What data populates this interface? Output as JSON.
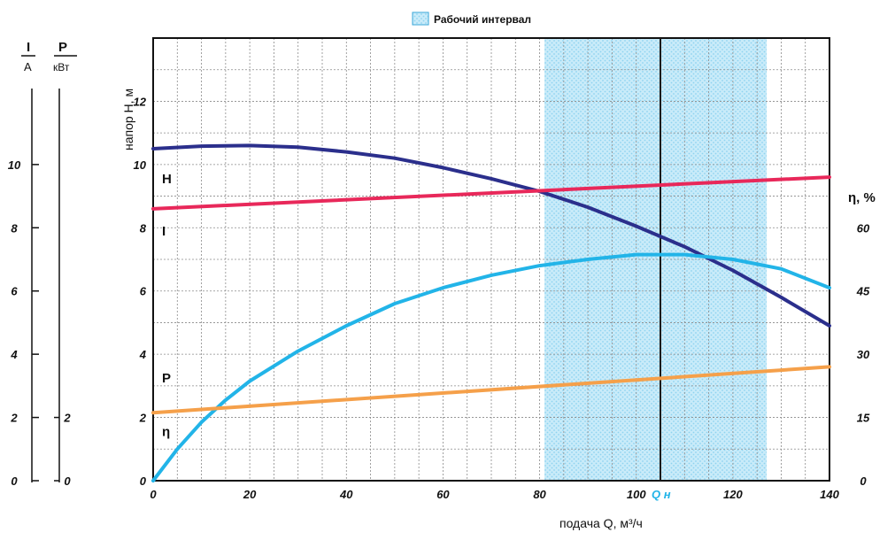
{
  "chart_data": {
    "type": "line",
    "legend": {
      "label": "Рабочий интервал",
      "placement": "top-center",
      "color": "#a8dcf2"
    },
    "x_axis": {
      "label": "подача Q, м³/ч",
      "range": [
        0,
        140
      ],
      "ticks": [
        "0",
        "20",
        "40",
        "60",
        "80",
        "100",
        "120",
        "140"
      ],
      "nominal_label": "Q н",
      "nominal_value": 105
    },
    "y_axis_left": {
      "label": "напор H, м",
      "range": [
        0,
        14
      ],
      "ticks": [
        "0",
        "2",
        "4",
        "6",
        "8",
        "10",
        "12"
      ]
    },
    "y_axis_right": {
      "label": "η, %",
      "range": [
        0,
        105
      ],
      "ticks": [
        "0",
        "15",
        "30",
        "45",
        "60"
      ]
    },
    "aux_axis_current": {
      "label_top": "I",
      "label_unit": "A",
      "ticks": [
        "0",
        "2",
        "4",
        "6",
        "8",
        "10"
      ]
    },
    "aux_axis_power": {
      "label_top": "P",
      "label_unit": "кВт",
      "ticks": [
        "0",
        "2"
      ]
    },
    "working_interval": {
      "x_from": 81,
      "x_to": 127
    },
    "grid": true,
    "series": [
      {
        "name": "H",
        "color": "#2b2f8c",
        "x": [
          0,
          10,
          20,
          30,
          40,
          50,
          60,
          70,
          80,
          90,
          100,
          110,
          120,
          130,
          140
        ],
        "y": [
          10.5,
          10.58,
          10.6,
          10.55,
          10.4,
          10.2,
          9.9,
          9.55,
          9.15,
          8.65,
          8.05,
          7.4,
          6.65,
          5.8,
          4.9
        ]
      },
      {
        "name": "I",
        "color": "#e8285a",
        "x": [
          0,
          140
        ],
        "y": [
          8.6,
          9.6
        ]
      },
      {
        "name": "η",
        "color": "#22b4e8",
        "x": [
          0,
          5,
          10,
          15,
          20,
          30,
          40,
          50,
          60,
          70,
          80,
          90,
          100,
          110,
          120,
          130,
          140
        ],
        "y": [
          0,
          1.0,
          1.85,
          2.55,
          3.15,
          4.1,
          4.9,
          5.6,
          6.1,
          6.5,
          6.8,
          7.0,
          7.15,
          7.15,
          7.0,
          6.7,
          6.1
        ]
      },
      {
        "name": "P",
        "color": "#f5a04a",
        "x": [
          0,
          140
        ],
        "y": [
          2.15,
          3.6
        ]
      }
    ],
    "curve_labels": [
      {
        "text": "H",
        "y": 9.55
      },
      {
        "text": "I",
        "y": 7.9
      },
      {
        "text": "P",
        "y": 3.25
      },
      {
        "text": "η",
        "y": 1.55
      }
    ]
  }
}
